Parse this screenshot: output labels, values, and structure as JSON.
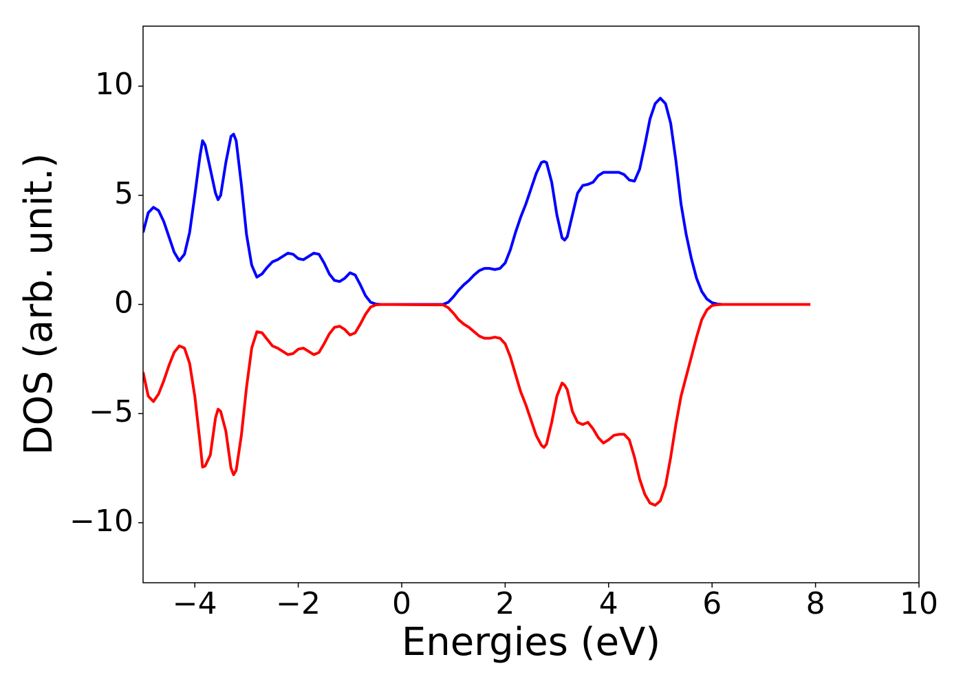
{
  "chart_data": {
    "type": "line",
    "x_label": "Energies (eV)",
    "y_label": "DOS (arb. unit.)",
    "xlim": [
      -5,
      10
    ],
    "ylim": [
      -12.75,
      12.75
    ],
    "xticks": [
      {
        "value": -4,
        "label": "−4"
      },
      {
        "value": -2,
        "label": "−2"
      },
      0,
      2,
      4,
      6,
      8,
      10
    ],
    "yticks": [
      {
        "value": -10,
        "label": "−10"
      },
      {
        "value": -5,
        "label": "−5"
      },
      0,
      5,
      10
    ],
    "grid": false,
    "x": [
      -5.0,
      -4.9,
      -4.8,
      -4.7,
      -4.6,
      -4.5,
      -4.4,
      -4.3,
      -4.2,
      -4.1,
      -4.0,
      -3.9,
      -3.85,
      -3.8,
      -3.7,
      -3.6,
      -3.55,
      -3.5,
      -3.4,
      -3.3,
      -3.25,
      -3.2,
      -3.1,
      -3.0,
      -2.9,
      -2.8,
      -2.7,
      -2.6,
      -2.5,
      -2.4,
      -2.3,
      -2.2,
      -2.1,
      -2.0,
      -1.9,
      -1.8,
      -1.7,
      -1.6,
      -1.5,
      -1.4,
      -1.3,
      -1.2,
      -1.1,
      -1.0,
      -0.9,
      -0.8,
      -0.7,
      -0.6,
      -0.5,
      -0.4,
      0.8,
      0.9,
      1.0,
      1.1,
      1.2,
      1.3,
      1.4,
      1.5,
      1.6,
      1.7,
      1.8,
      1.9,
      2.0,
      2.1,
      2.2,
      2.3,
      2.4,
      2.5,
      2.6,
      2.7,
      2.75,
      2.8,
      2.9,
      3.0,
      3.1,
      3.15,
      3.2,
      3.3,
      3.4,
      3.5,
      3.6,
      3.7,
      3.8,
      3.9,
      4.0,
      4.1,
      4.2,
      4.3,
      4.4,
      4.5,
      4.6,
      4.7,
      4.8,
      4.9,
      5.0,
      5.1,
      5.2,
      5.3,
      5.4,
      5.5,
      5.6,
      5.7,
      5.8,
      5.9,
      6.0,
      6.1,
      6.2,
      7.9
    ],
    "series": [
      {
        "color": "#0000ff",
        "values": [
          3.3,
          4.2,
          4.45,
          4.3,
          3.8,
          3.1,
          2.4,
          2.0,
          2.3,
          3.3,
          5.0,
          6.8,
          7.5,
          7.3,
          6.2,
          5.1,
          4.8,
          5.0,
          6.5,
          7.7,
          7.8,
          7.5,
          5.5,
          3.2,
          1.8,
          1.25,
          1.4,
          1.7,
          1.95,
          2.05,
          2.2,
          2.35,
          2.3,
          2.1,
          2.05,
          2.2,
          2.35,
          2.3,
          1.9,
          1.4,
          1.1,
          1.05,
          1.2,
          1.45,
          1.35,
          0.9,
          0.4,
          0.1,
          0.02,
          0,
          0,
          0.1,
          0.35,
          0.65,
          0.9,
          1.1,
          1.35,
          1.55,
          1.65,
          1.65,
          1.6,
          1.65,
          1.9,
          2.5,
          3.3,
          4.0,
          4.6,
          5.3,
          6.0,
          6.5,
          6.55,
          6.5,
          5.6,
          4.1,
          3.05,
          2.95,
          3.1,
          4.1,
          5.1,
          5.45,
          5.5,
          5.6,
          5.9,
          6.05,
          6.05,
          6.05,
          6.05,
          5.95,
          5.7,
          5.65,
          6.2,
          7.3,
          8.5,
          9.2,
          9.45,
          9.2,
          8.3,
          6.6,
          4.6,
          3.2,
          2.1,
          1.2,
          0.6,
          0.25,
          0.08,
          0.02,
          0,
          0
        ]
      },
      {
        "color": "#ff0000",
        "values": [
          -3.1,
          -4.2,
          -4.45,
          -4.1,
          -3.5,
          -2.8,
          -2.2,
          -1.9,
          -2.0,
          -2.7,
          -4.2,
          -6.3,
          -7.45,
          -7.4,
          -6.9,
          -5.2,
          -4.8,
          -4.9,
          -5.8,
          -7.5,
          -7.8,
          -7.6,
          -6.0,
          -3.8,
          -2.0,
          -1.25,
          -1.3,
          -1.6,
          -1.9,
          -2.0,
          -2.15,
          -2.3,
          -2.25,
          -2.05,
          -2.0,
          -2.15,
          -2.3,
          -2.2,
          -1.8,
          -1.35,
          -1.05,
          -1.0,
          -1.15,
          -1.4,
          -1.3,
          -0.9,
          -0.45,
          -0.12,
          -0.02,
          0,
          -0.02,
          -0.15,
          -0.4,
          -0.7,
          -0.9,
          -1.05,
          -1.25,
          -1.45,
          -1.55,
          -1.55,
          -1.5,
          -1.55,
          -1.8,
          -2.4,
          -3.2,
          -4.0,
          -4.6,
          -5.3,
          -6.0,
          -6.45,
          -6.55,
          -6.4,
          -5.4,
          -4.2,
          -3.6,
          -3.7,
          -3.9,
          -4.9,
          -5.4,
          -5.5,
          -5.4,
          -5.7,
          -6.1,
          -6.35,
          -6.2,
          -6.0,
          -5.95,
          -5.95,
          -6.2,
          -7.0,
          -8.0,
          -8.7,
          -9.1,
          -9.2,
          -9.0,
          -8.3,
          -7.0,
          -5.5,
          -4.2,
          -3.3,
          -2.4,
          -1.5,
          -0.7,
          -0.25,
          -0.05,
          -0.01,
          0,
          0
        ]
      }
    ]
  }
}
